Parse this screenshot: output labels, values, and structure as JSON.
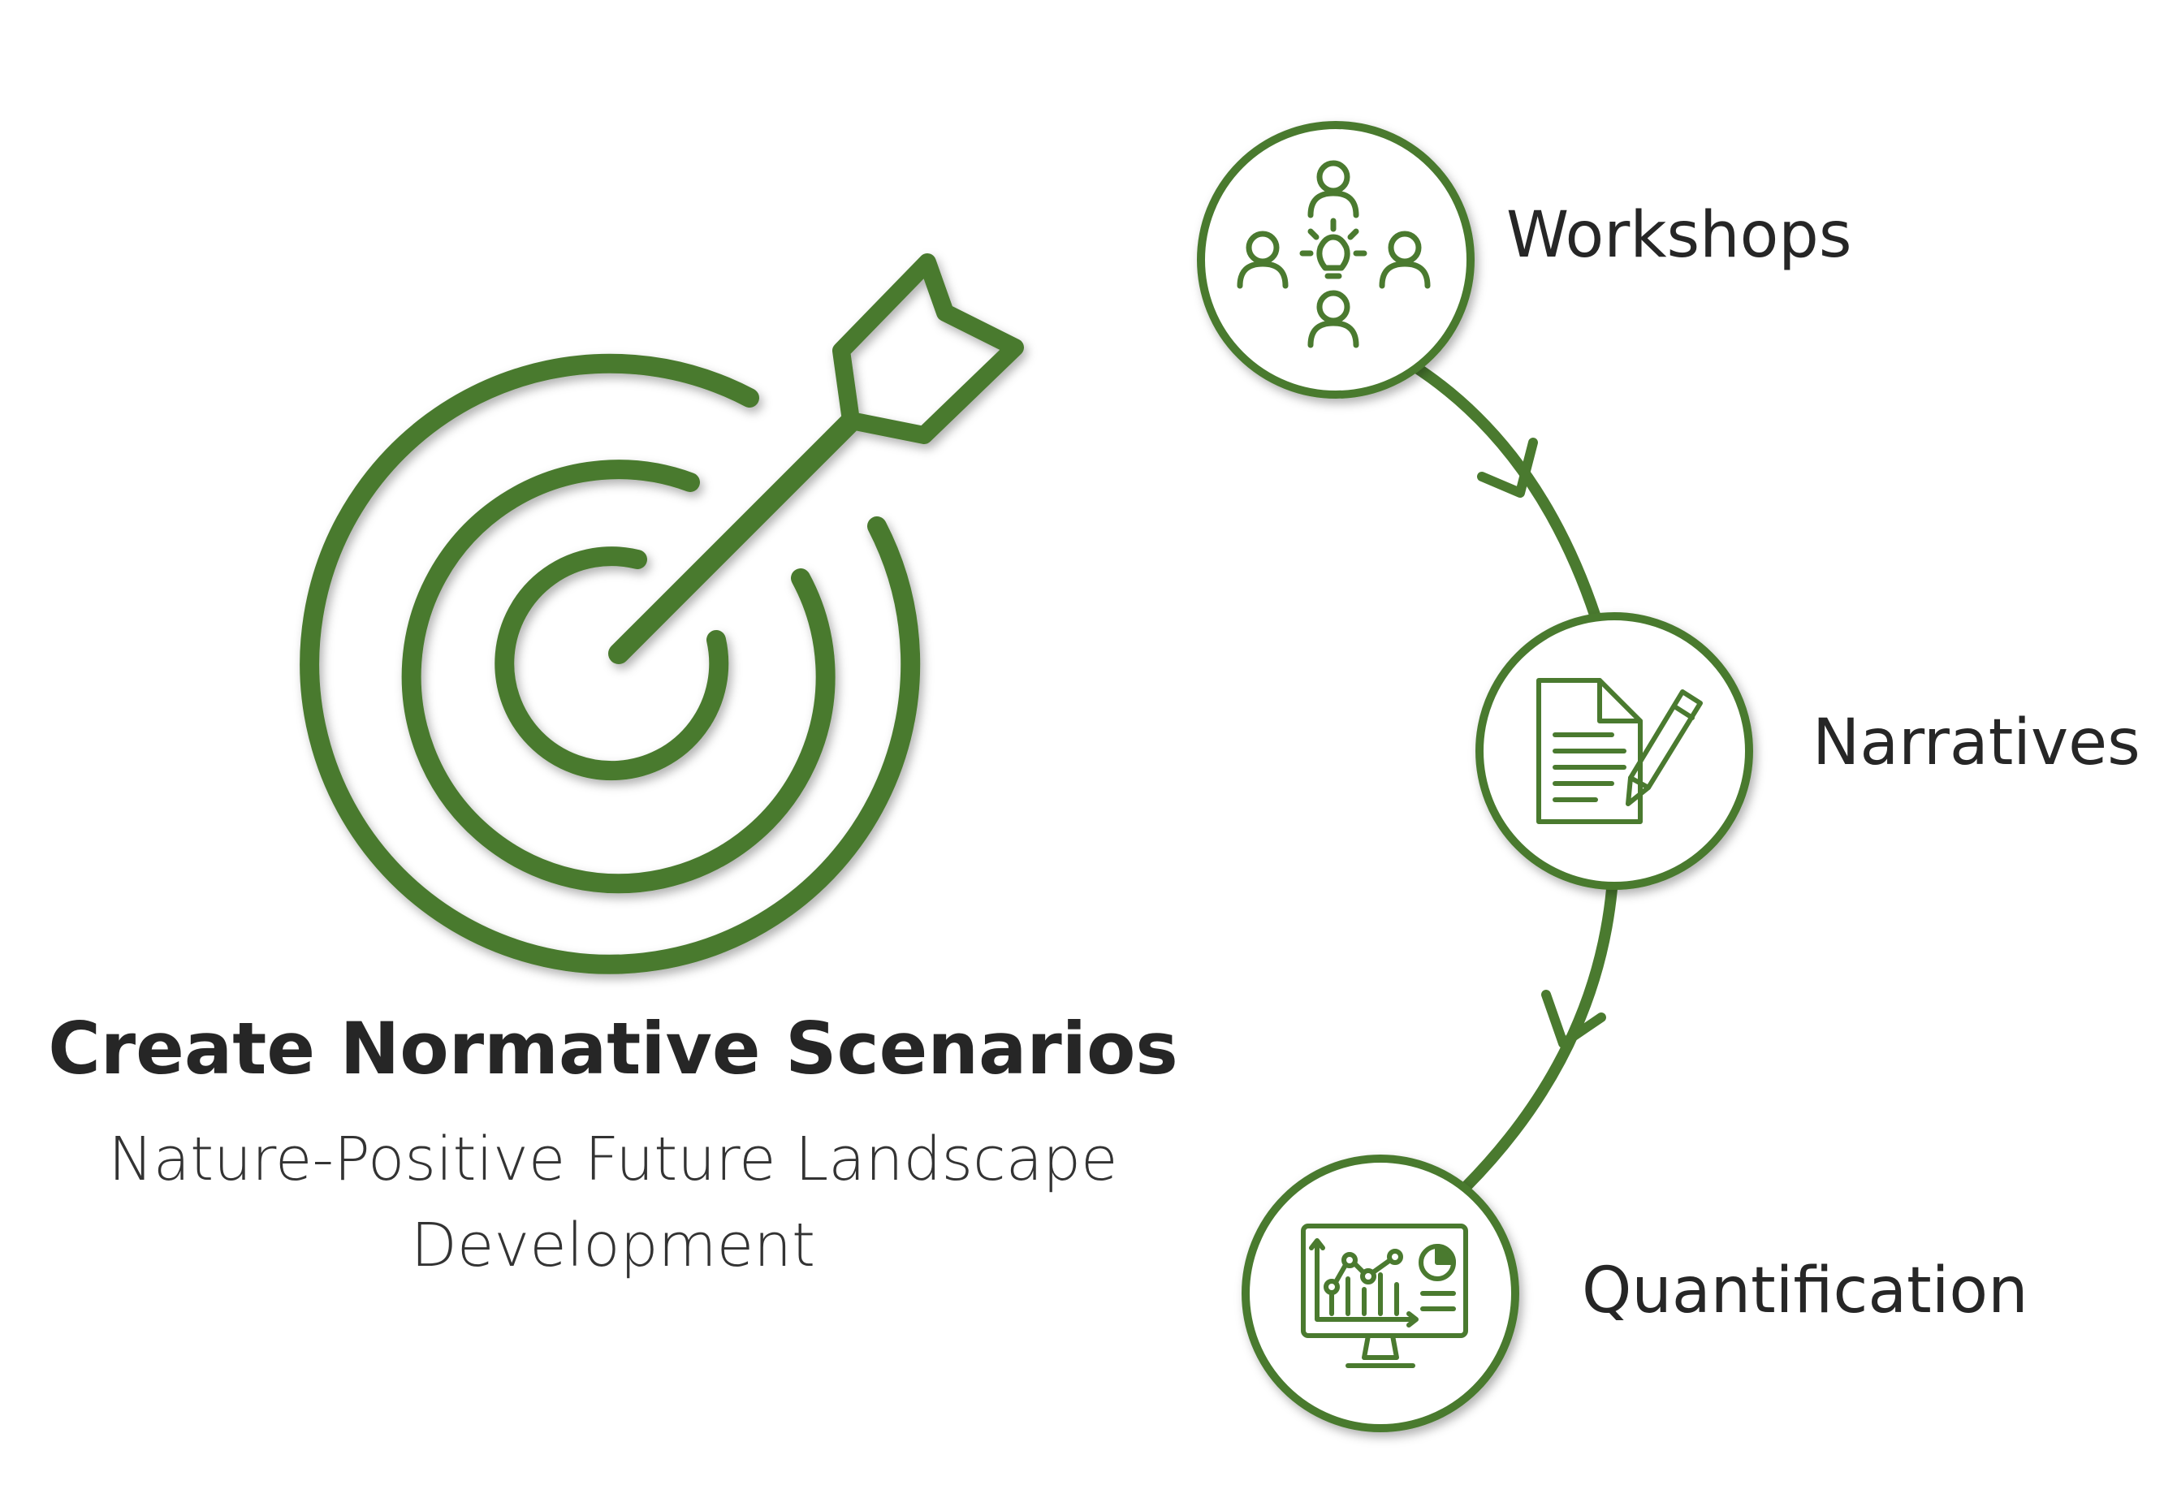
{
  "colors": {
    "accent": "#4a7a2f",
    "text": "#262626",
    "background": "#ffffff"
  },
  "main": {
    "title": "Create Normative Scenarios",
    "subtitle": "Nature-Positive Future Landscape Development",
    "icon": "target-arrow-icon"
  },
  "steps": [
    {
      "label": "Workshops",
      "icon": "workshop-people-icon"
    },
    {
      "label": "Narratives",
      "icon": "document-pencil-icon"
    },
    {
      "label": "Quantification",
      "icon": "monitor-chart-icon"
    }
  ]
}
